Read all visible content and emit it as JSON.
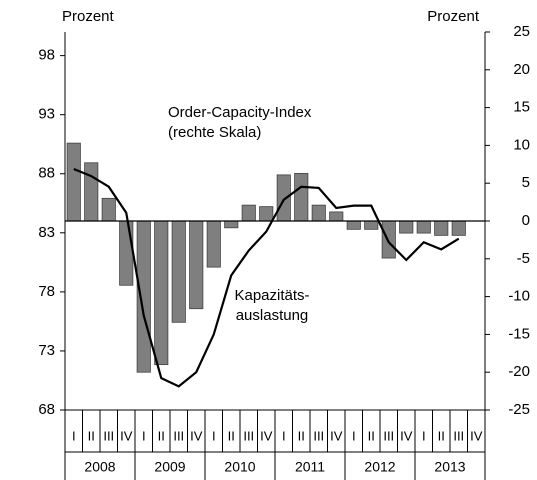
{
  "chart_data": {
    "type": "bar-line",
    "y_label": "Prozent",
    "y2_label": "Prozent",
    "categories": [
      "I",
      "II",
      "III",
      "IV",
      "I",
      "II",
      "III",
      "IV",
      "I",
      "II",
      "III",
      "IV",
      "I",
      "II",
      "III",
      "IV",
      "I",
      "II",
      "III",
      "IV",
      "I",
      "II",
      "III",
      "IV"
    ],
    "years": [
      "2008",
      "2009",
      "2010",
      "2011",
      "2012",
      "2013"
    ],
    "ylim": [
      68,
      100
    ],
    "yticks": [
      68,
      73,
      78,
      83,
      88,
      93,
      98
    ],
    "y2lim": [
      -25,
      25
    ],
    "y2ticks": [
      -25,
      -20,
      -15,
      -10,
      -5,
      0,
      5,
      10,
      15,
      20,
      25
    ],
    "series": [
      {
        "name": "Order-Capacity-Index",
        "type": "bar",
        "axis": "y2",
        "color": "#7f7f7f",
        "values": [
          10.3,
          7.7,
          3.0,
          -8.5,
          -20,
          -19,
          -13.4,
          -11.6,
          -6.1,
          -0.9,
          2.1,
          1.9,
          6.1,
          6.3,
          2.1,
          1.2,
          -1.1,
          -1.1,
          -4.9,
          -1.6,
          -1.6,
          -1.9,
          -1.9,
          null
        ]
      },
      {
        "name": "Kapazitätsauslastung",
        "type": "line",
        "axis": "y",
        "color": "#000000",
        "values": [
          88.4,
          87.8,
          86.9,
          84.7,
          76.0,
          70.7,
          70.0,
          71.2,
          74.4,
          79.4,
          81.5,
          83.1,
          85.8,
          86.9,
          86.8,
          85.1,
          85.3,
          85.3,
          82.2,
          80.7,
          82.2,
          81.6,
          82.5,
          null
        ]
      }
    ],
    "annotations": [
      {
        "lines": [
          "Order-Capacity-Index",
          "(rechte Skala)"
        ]
      },
      {
        "lines": [
          "Kapazitäts-",
          "auslastung"
        ]
      }
    ]
  }
}
